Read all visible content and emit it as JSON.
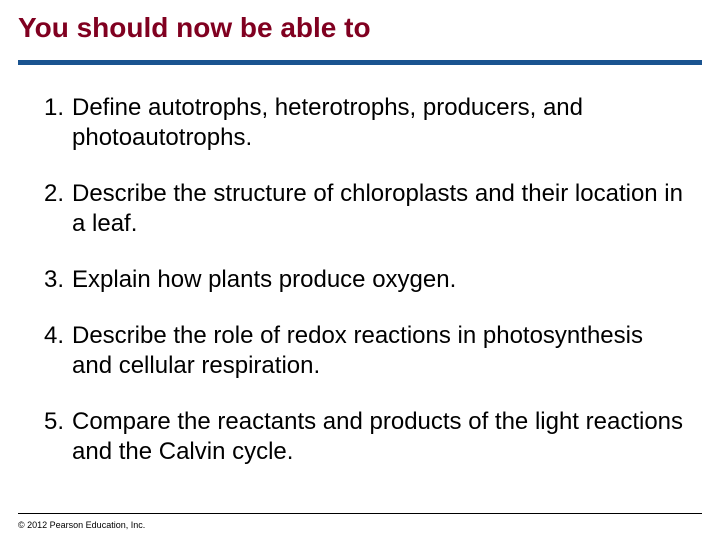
{
  "title": "You should now be able to",
  "title_color": "#800020",
  "divider_color": "#1a5490",
  "objectives": [
    {
      "num": "1.",
      "text": "Define autotrophs, heterotrophs, producers, and photoautotrophs."
    },
    {
      "num": "2.",
      "text": "Describe the structure of chloroplasts and their location in a leaf."
    },
    {
      "num": "3.",
      "text": "Explain how plants produce oxygen."
    },
    {
      "num": "4.",
      "text": "Describe the role of redox reactions in photosynthesis and cellular respiration."
    },
    {
      "num": "5.",
      "text": "Compare the reactants and products of the light reactions and the Calvin cycle."
    }
  ],
  "copyright": "© 2012 Pearson Education, Inc.",
  "body_fontsize": 24,
  "title_fontsize": 28,
  "background_color": "#ffffff",
  "text_color": "#000000"
}
